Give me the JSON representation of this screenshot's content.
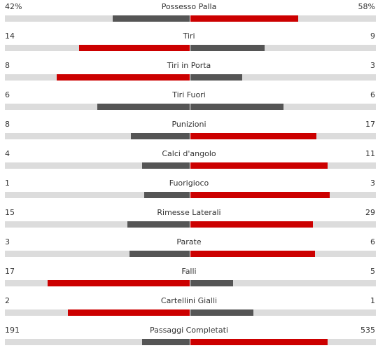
{
  "colors": {
    "red": "#cc0000",
    "gray": "#555555",
    "track": "#dcdcdc"
  },
  "stats": [
    {
      "label": "Possesso Palla",
      "left": "42%",
      "right": "58%",
      "left_fraction": 0.42,
      "right_fraction": 0.58,
      "left_color": "gray",
      "right_color": "red"
    },
    {
      "label": "Tiri",
      "left": "14",
      "right": "9",
      "left_fraction": 0.6,
      "right_fraction": 0.4,
      "left_color": "red",
      "right_color": "gray"
    },
    {
      "label": "Tiri in Porta",
      "left": "8",
      "right": "3",
      "left_fraction": 0.72,
      "right_fraction": 0.28,
      "left_color": "red",
      "right_color": "gray"
    },
    {
      "label": "Tiri Fuori",
      "left": "6",
      "right": "6",
      "left_fraction": 0.5,
      "right_fraction": 0.5,
      "left_color": "gray",
      "right_color": "gray"
    },
    {
      "label": "Punizioni",
      "left": "8",
      "right": "17",
      "left_fraction": 0.32,
      "right_fraction": 0.68,
      "left_color": "gray",
      "right_color": "red"
    },
    {
      "label": "Calci d'angolo",
      "left": "4",
      "right": "11",
      "left_fraction": 0.26,
      "right_fraction": 0.74,
      "left_color": "gray",
      "right_color": "red"
    },
    {
      "label": "Fuorigioco",
      "left": "1",
      "right": "3",
      "left_fraction": 0.25,
      "right_fraction": 0.75,
      "left_color": "gray",
      "right_color": "red"
    },
    {
      "label": "Rimesse Laterali",
      "left": "15",
      "right": "29",
      "left_fraction": 0.34,
      "right_fraction": 0.66,
      "left_color": "gray",
      "right_color": "red"
    },
    {
      "label": "Parate",
      "left": "3",
      "right": "6",
      "left_fraction": 0.33,
      "right_fraction": 0.67,
      "left_color": "gray",
      "right_color": "red"
    },
    {
      "label": "Falli",
      "left": "17",
      "right": "5",
      "left_fraction": 0.77,
      "right_fraction": 0.23,
      "left_color": "red",
      "right_color": "gray"
    },
    {
      "label": "Cartellini Gialli",
      "left": "2",
      "right": "1",
      "left_fraction": 0.66,
      "right_fraction": 0.34,
      "left_color": "red",
      "right_color": "gray"
    },
    {
      "label": "Passaggi Completati",
      "left": "191",
      "right": "535",
      "left_fraction": 0.26,
      "right_fraction": 0.74,
      "left_color": "gray",
      "right_color": "red"
    }
  ]
}
